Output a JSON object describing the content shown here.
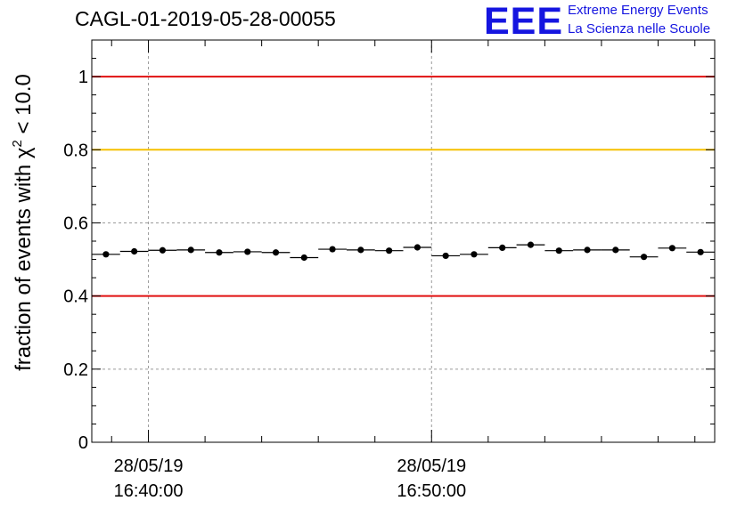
{
  "header": {
    "title": "CAGL-01-2019-05-28-00055",
    "logo_text": "EEE",
    "logo_line1": "Extreme Energy Events",
    "logo_line2": "La Scienza nelle Scuole"
  },
  "colors": {
    "reference_line_red": "#e01010",
    "reference_line_yellow": "#f5c000",
    "logo_blue": "#1515e0"
  },
  "chart_data": {
    "type": "scatter",
    "title": "CAGL-01-2019-05-28-00055",
    "ylabel_prefix": "fraction of events with χ",
    "ylabel_exponent": "2",
    "ylabel_suffix": " < 10.0",
    "xlabel": "",
    "ylim": [
      0,
      1.1
    ],
    "yticks": [
      {
        "value": 0,
        "label": "0"
      },
      {
        "value": 0.2,
        "label": "0.2"
      },
      {
        "value": 0.4,
        "label": "0.4"
      },
      {
        "value": 0.6,
        "label": "0.6"
      },
      {
        "value": 0.8,
        "label": "0.8"
      },
      {
        "value": 1,
        "label": "1"
      }
    ],
    "xlim_minutes": [
      0,
      22
    ],
    "xticks": [
      {
        "minute": 2,
        "date": "28/05/19",
        "time": "16:40:00"
      },
      {
        "minute": 12,
        "date": "28/05/19",
        "time": "16:50:00"
      }
    ],
    "minor_xtick_minutes": [
      0.7,
      4,
      6,
      8,
      10,
      14,
      16,
      18,
      20,
      21.3
    ],
    "reference_lines": [
      {
        "value": 1.0,
        "color": "#e01010"
      },
      {
        "value": 0.8,
        "color": "#f5c000"
      },
      {
        "value": 0.4,
        "color": "#e01010"
      }
    ],
    "grid": true,
    "series": [
      {
        "x_center_minutes": [
          0.5,
          1.5,
          2.5,
          3.5,
          4.5,
          5.5,
          6.5,
          7.5,
          8.5,
          9.5,
          10.5,
          11.5,
          12.5,
          13.5,
          14.5,
          15.5,
          16.5,
          17.5,
          18.5,
          19.5,
          20.5,
          21.5
        ],
        "bin_halfwidth_minutes": 0.5,
        "values": [
          0.514,
          0.522,
          0.525,
          0.526,
          0.519,
          0.521,
          0.519,
          0.505,
          0.528,
          0.526,
          0.524,
          0.533,
          0.51,
          0.514,
          0.532,
          0.54,
          0.524,
          0.526,
          0.526,
          0.507,
          0.531,
          0.52
        ],
        "errors": [
          0.006,
          0.006,
          0.006,
          0.006,
          0.006,
          0.006,
          0.006,
          0.006,
          0.006,
          0.006,
          0.006,
          0.006,
          0.006,
          0.006,
          0.006,
          0.006,
          0.006,
          0.006,
          0.006,
          0.006,
          0.006,
          0.006
        ]
      }
    ]
  }
}
